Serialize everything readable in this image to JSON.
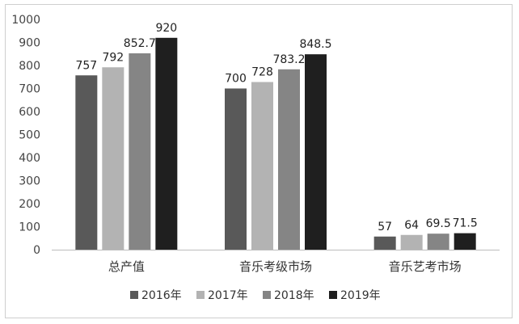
{
  "chart_data": {
    "type": "bar",
    "title": "",
    "xlabel": "",
    "ylabel": "",
    "categories": [
      "总产值",
      "音乐考级市场",
      "音乐艺考市场"
    ],
    "series": [
      {
        "name": "2016年",
        "values": [
          757,
          700,
          57
        ],
        "value_labels": [
          "757",
          "700",
          "57"
        ],
        "color": "#595959"
      },
      {
        "name": "2017年",
        "values": [
          792,
          728,
          64
        ],
        "value_labels": [
          "792",
          "728",
          "64"
        ],
        "color": "#b3b3b3"
      },
      {
        "name": "2018年",
        "values": [
          852.7,
          783.2,
          69.5
        ],
        "value_labels": [
          "852.7",
          "783.2",
          "69.5"
        ],
        "color": "#858585"
      },
      {
        "name": "2019年",
        "values": [
          920,
          848.5,
          71.5
        ],
        "value_labels": [
          "920",
          "848.5",
          "71.5"
        ],
        "color": "#1f1f1f"
      }
    ],
    "ylim": [
      0,
      1000
    ],
    "yticks": [
      0,
      100,
      200,
      300,
      400,
      500,
      600,
      700,
      800,
      900,
      1000
    ],
    "grid": false,
    "legend_position": "bottom"
  }
}
